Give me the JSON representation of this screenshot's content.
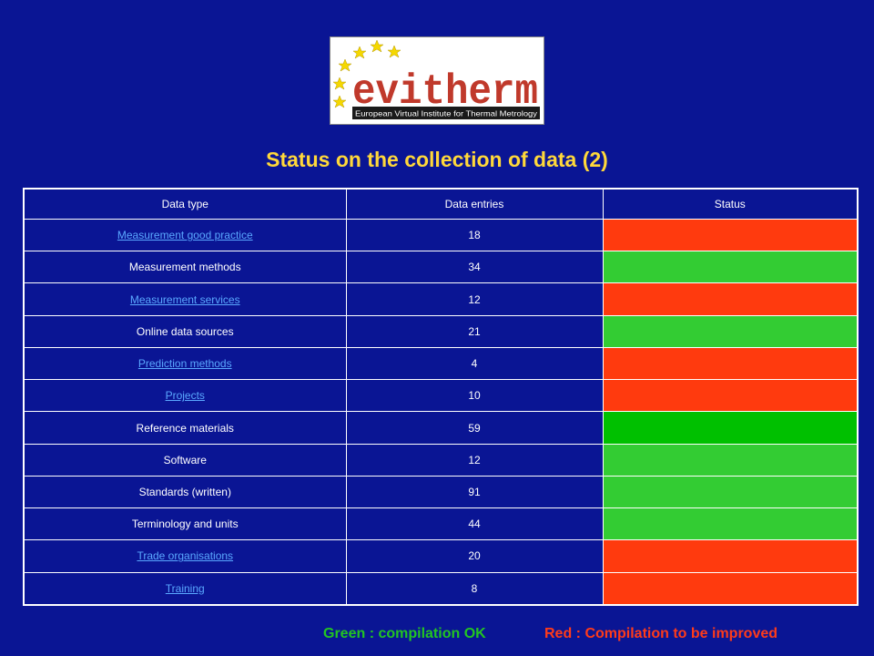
{
  "logo": {
    "word": "evitherm",
    "subtitle": "European Virtual Institute for Thermal Metrology"
  },
  "title": "Status on the collection of data (2)",
  "table": {
    "headers": [
      "Data type",
      "Data entries",
      "Status"
    ],
    "rows": [
      {
        "type": "Measurement  good practice",
        "entries": "18",
        "status": "red",
        "link": true
      },
      {
        "type": "Measurement  methods",
        "entries": "34",
        "status": "green",
        "link": false
      },
      {
        "type": "Measurement  services",
        "entries": "12",
        "status": "red",
        "link": true
      },
      {
        "type": "Online data sources",
        "entries": "21",
        "status": "green",
        "link": false
      },
      {
        "type": "Prediction methods",
        "entries": "4",
        "status": "red",
        "link": true
      },
      {
        "type": "Projects",
        "entries": "10",
        "status": "red",
        "link": true
      },
      {
        "type": "Reference materials",
        "entries": "59",
        "status": "bright-green",
        "link": false
      },
      {
        "type": "Software",
        "entries": "12",
        "status": "green",
        "link": false
      },
      {
        "type": "Standards (written)",
        "entries": "91",
        "status": "green",
        "link": false
      },
      {
        "type": "Terminology and units",
        "entries": "44",
        "status": "green",
        "link": false
      },
      {
        "type": "Trade  organisations",
        "entries": "20",
        "status": "red",
        "link": true
      },
      {
        "type": "Training",
        "entries": "8",
        "status": "red",
        "link": true
      }
    ]
  },
  "status_colors": {
    "red": "#ff3a0e",
    "green": "#33cc33",
    "bright-green": "#00c000"
  },
  "legend": {
    "green": "Green : compilation OK",
    "red": "Red : Compilation to be improved"
  }
}
